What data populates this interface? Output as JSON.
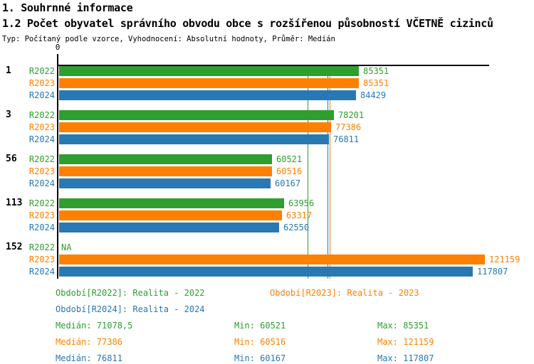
{
  "header": {
    "title1": "1. Souhrnné informace",
    "title2": "1.2 Počet obyvatel správního obvodu obce s rozšířenou působností VČETNĚ cizinců",
    "subtitle": "Typ: Počítaný podle vzorce, Vyhodnocení: Absolutní hodnoty, Průměr: Medián"
  },
  "colors": {
    "r2022_green": "#2E9E2E",
    "r2023_orange": "#FF8000",
    "r2024_blue": "#2878B4",
    "axis_black": "#000000"
  },
  "chart_data": {
    "type": "bar",
    "orientation": "horizontal",
    "zero_label": "0",
    "na_label": "NA",
    "axis_range": [
      0,
      122500
    ],
    "grid": false,
    "legend_position": "bottom",
    "groups": [
      "1",
      "3",
      "56",
      "113",
      "152"
    ],
    "series": [
      {
        "name": "R2022",
        "color": "#2E9E2E",
        "values": [
          85351,
          78201,
          60521,
          63956,
          null
        ],
        "median": 71078.5,
        "min": 60521,
        "max": 85351
      },
      {
        "name": "R2023",
        "color": "#FF8000",
        "values": [
          85351,
          77386,
          60516,
          63317,
          121159
        ],
        "median": 77386,
        "min": 60516,
        "max": 121159
      },
      {
        "name": "R2024",
        "color": "#2878B4",
        "values": [
          84429,
          76811,
          60167,
          62550,
          117807
        ],
        "median": 76811,
        "min": 60167,
        "max": 117807
      }
    ],
    "median_reference_lines": [
      71078.5,
      77386,
      76811
    ]
  },
  "legend": {
    "periods": [
      {
        "text": "Období[R2022]: Realita - 2022"
      },
      {
        "text": "Období[R2023]: Realita - 2023"
      },
      {
        "text": "Období[R2024]: Realita - 2024"
      }
    ],
    "stats": [
      {
        "median": "Medián: 71078,5",
        "min": "Min: 60521",
        "max": "Max: 85351"
      },
      {
        "median": "Medián: 77386",
        "min": "Min: 60516",
        "max": "Max: 121159"
      },
      {
        "median": "Medián: 76811",
        "min": "Min: 60167",
        "max": "Max: 117807"
      }
    ]
  }
}
